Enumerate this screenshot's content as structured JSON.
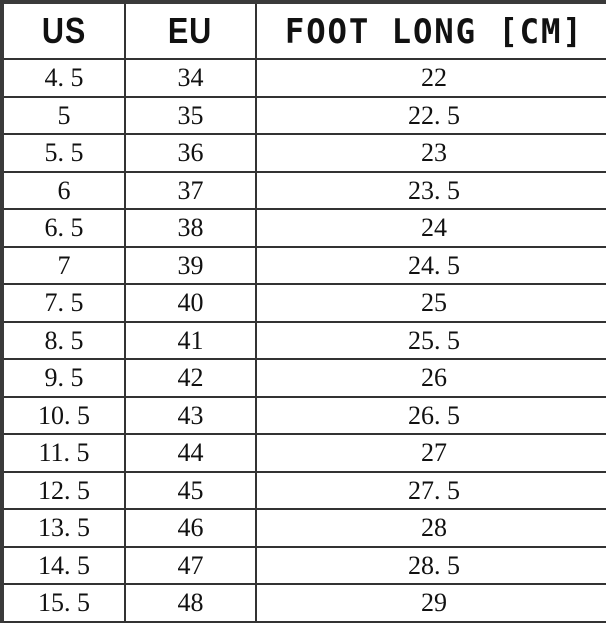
{
  "headers": [
    "US",
    "EU",
    "FOOT LONG [CM]"
  ],
  "rows": [
    [
      "4. 5",
      "34",
      "22"
    ],
    [
      "5",
      "35",
      "22. 5"
    ],
    [
      "5. 5",
      "36",
      "23"
    ],
    [
      "6",
      "37",
      "23. 5"
    ],
    [
      "6. 5",
      "38",
      "24"
    ],
    [
      "7",
      "39",
      "24. 5"
    ],
    [
      "7. 5",
      "40",
      "25"
    ],
    [
      "8. 5",
      "41",
      "25. 5"
    ],
    [
      "9. 5",
      "42",
      "26"
    ],
    [
      "10. 5",
      "43",
      "26. 5"
    ],
    [
      "11. 5",
      "44",
      "27"
    ],
    [
      "12. 5",
      "45",
      "27. 5"
    ],
    [
      "13. 5",
      "46",
      "28"
    ],
    [
      "14. 5",
      "47",
      "28. 5"
    ],
    [
      "15. 5",
      "48",
      "29"
    ]
  ]
}
